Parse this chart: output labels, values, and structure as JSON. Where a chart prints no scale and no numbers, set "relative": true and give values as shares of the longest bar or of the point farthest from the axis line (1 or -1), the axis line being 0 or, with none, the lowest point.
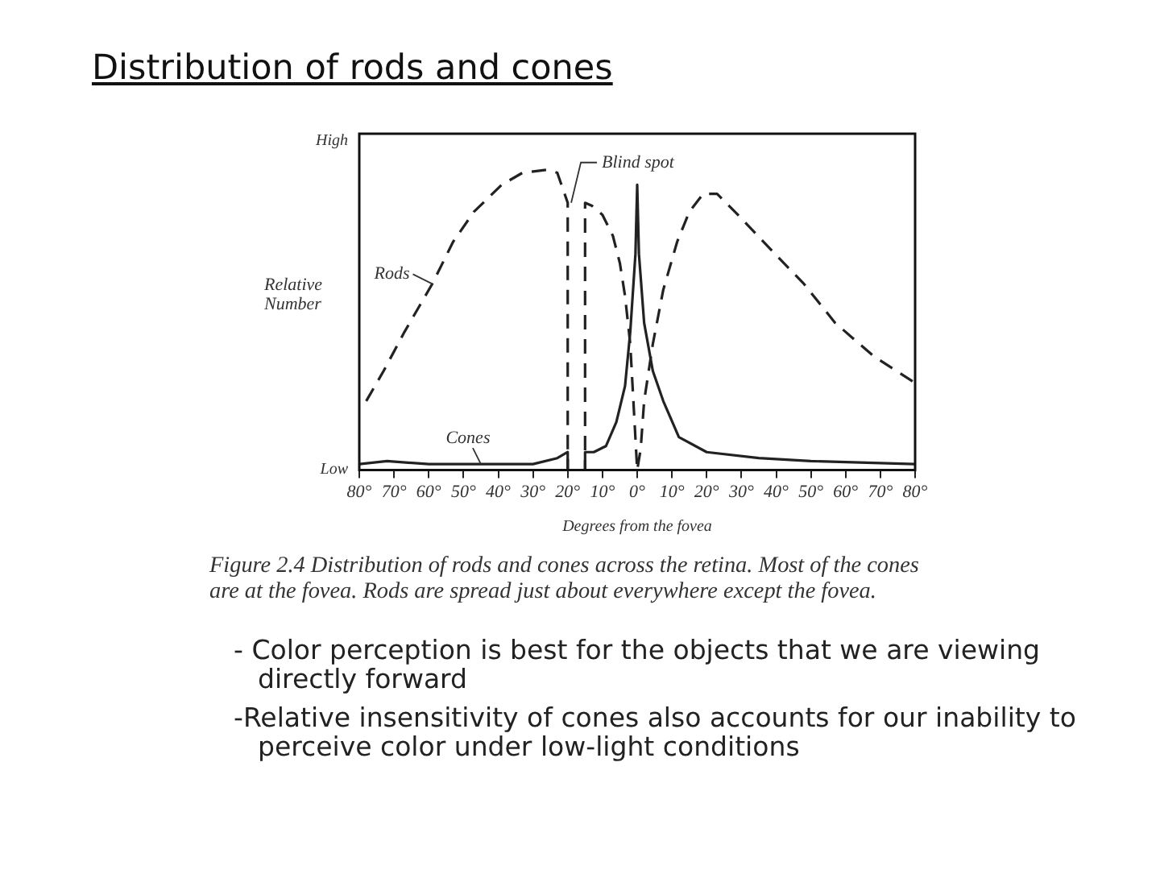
{
  "chart_data": {
    "type": "line",
    "title": "Distribution of rods and cones",
    "xlabel": "Degrees from the fovea",
    "ylabel": "Relative Number",
    "relative": true,
    "xlim": [
      -80,
      80
    ],
    "xticks": [
      {
        "value": -80,
        "label": "80°"
      },
      {
        "value": -70,
        "label": "70°"
      },
      {
        "value": -60,
        "label": "60°"
      },
      {
        "value": -50,
        "label": "50°"
      },
      {
        "value": -40,
        "label": "40°"
      },
      {
        "value": -30,
        "label": "30°"
      },
      {
        "value": -20,
        "label": "20°"
      },
      {
        "value": -10,
        "label": "10°"
      },
      {
        "value": 0,
        "label": "0°"
      },
      {
        "value": 10,
        "label": "10°"
      },
      {
        "value": 20,
        "label": "20°"
      },
      {
        "value": 30,
        "label": "30°"
      },
      {
        "value": 40,
        "label": "40°"
      },
      {
        "value": 50,
        "label": "50°"
      },
      {
        "value": 60,
        "label": "60°"
      },
      {
        "value": 70,
        "label": "70°"
      },
      {
        "value": 80,
        "label": "80°"
      }
    ],
    "grid": false,
    "legend": false,
    "marker": "none",
    "series": [
      {
        "name": "Rods",
        "color": "#222222",
        "line_style": "dashed",
        "x": [
          -78,
          -73,
          -67,
          -59,
          -53,
          -47,
          -39,
          -33,
          -26,
          -23,
          -20,
          -20,
          -15,
          -15,
          -13,
          -10,
          -7,
          -5,
          -3.5,
          -2,
          -1,
          0,
          1,
          2,
          4.5,
          7.5,
          11.5,
          15,
          19,
          23,
          29,
          38,
          48,
          57,
          68,
          80
        ],
        "values": [
          0.23,
          0.33,
          0.46,
          0.62,
          0.76,
          0.86,
          0.95,
          0.99,
          1,
          0.99,
          0.89,
          0,
          0,
          0.89,
          0.88,
          0.85,
          0.78,
          0.69,
          0.58,
          0.42,
          0.21,
          0,
          0.07,
          0.23,
          0.42,
          0.6,
          0.76,
          0.86,
          0.92,
          0.92,
          0.85,
          0.74,
          0.62,
          0.49,
          0.38,
          0.29
        ]
      },
      {
        "name": "Cones",
        "color": "#222222",
        "line_style": "solid",
        "x": [
          -80,
          -72,
          -60,
          -45,
          -30,
          -23,
          -20,
          -20,
          -15,
          -15,
          -12.5,
          -9,
          -6,
          -3.5,
          -2,
          -0.5,
          0,
          0.5,
          2,
          4.5,
          7.5,
          12,
          20,
          35,
          50,
          80
        ],
        "values": [
          0.02,
          0.03,
          0.02,
          0.02,
          0.02,
          0.04,
          0.06,
          0,
          0,
          0.06,
          0.06,
          0.08,
          0.16,
          0.28,
          0.46,
          0.72,
          0.95,
          0.72,
          0.49,
          0.33,
          0.23,
          0.11,
          0.06,
          0.04,
          0.03,
          0.02
        ]
      }
    ],
    "annotations": [
      {
        "text": "Blind spot",
        "x": -19,
        "y": 0.89
      },
      "High",
      "Low",
      "Figure 2.4 Distribution of rods and cones across the retina. Most of the cones are at the fovea. Rods are spread just about everywhere except the fovea.",
      "- Color perception is best for the objects that we are viewing directly forward",
      "-Relative insensitivity of cones also accounts for our inability to perceive color under low-light conditions"
    ]
  }
}
